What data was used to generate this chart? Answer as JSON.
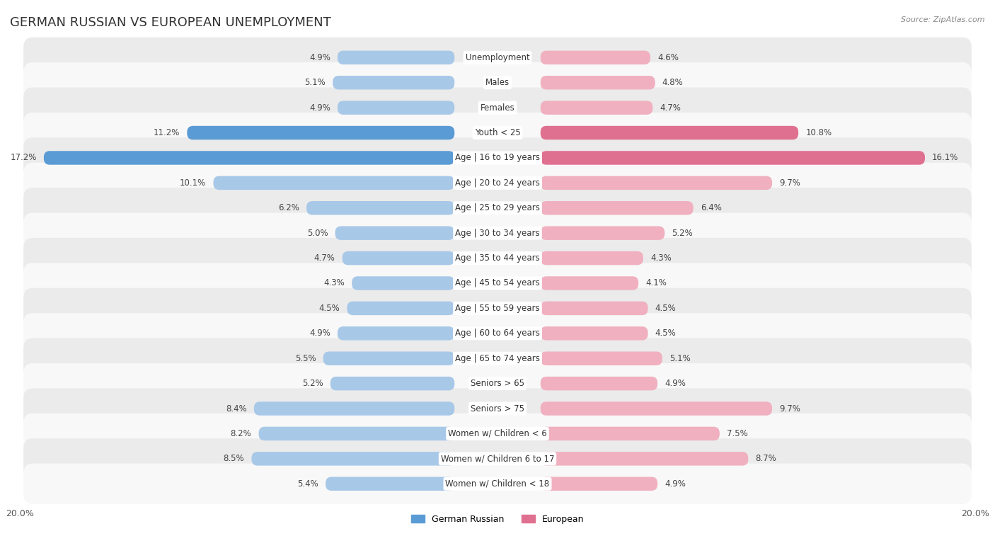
{
  "title": "GERMAN RUSSIAN VS EUROPEAN UNEMPLOYMENT",
  "source": "Source: ZipAtlas.com",
  "categories": [
    "Unemployment",
    "Males",
    "Females",
    "Youth < 25",
    "Age | 16 to 19 years",
    "Age | 20 to 24 years",
    "Age | 25 to 29 years",
    "Age | 30 to 34 years",
    "Age | 35 to 44 years",
    "Age | 45 to 54 years",
    "Age | 55 to 59 years",
    "Age | 60 to 64 years",
    "Age | 65 to 74 years",
    "Seniors > 65",
    "Seniors > 75",
    "Women w/ Children < 6",
    "Women w/ Children 6 to 17",
    "Women w/ Children < 18"
  ],
  "german_russian": [
    4.9,
    5.1,
    4.9,
    11.2,
    17.2,
    10.1,
    6.2,
    5.0,
    4.7,
    4.3,
    4.5,
    4.9,
    5.5,
    5.2,
    8.4,
    8.2,
    8.5,
    5.4
  ],
  "european": [
    4.6,
    4.8,
    4.7,
    10.8,
    16.1,
    9.7,
    6.4,
    5.2,
    4.3,
    4.1,
    4.5,
    4.5,
    5.1,
    4.9,
    9.7,
    7.5,
    8.7,
    4.9
  ],
  "color_german_russian": "#a8c8e8",
  "color_european": "#f0b0c0",
  "color_highlight_gr": "#5b9bd5",
  "color_highlight_eu": "#e07090",
  "highlight_rows": [
    3,
    4
  ],
  "background_row_light": "#ebebeb",
  "background_row_white": "#f8f8f8",
  "xlim": 20.0,
  "legend_labels": [
    "German Russian",
    "European"
  ],
  "title_fontsize": 13,
  "label_fontsize": 8.5,
  "value_fontsize": 8.5
}
